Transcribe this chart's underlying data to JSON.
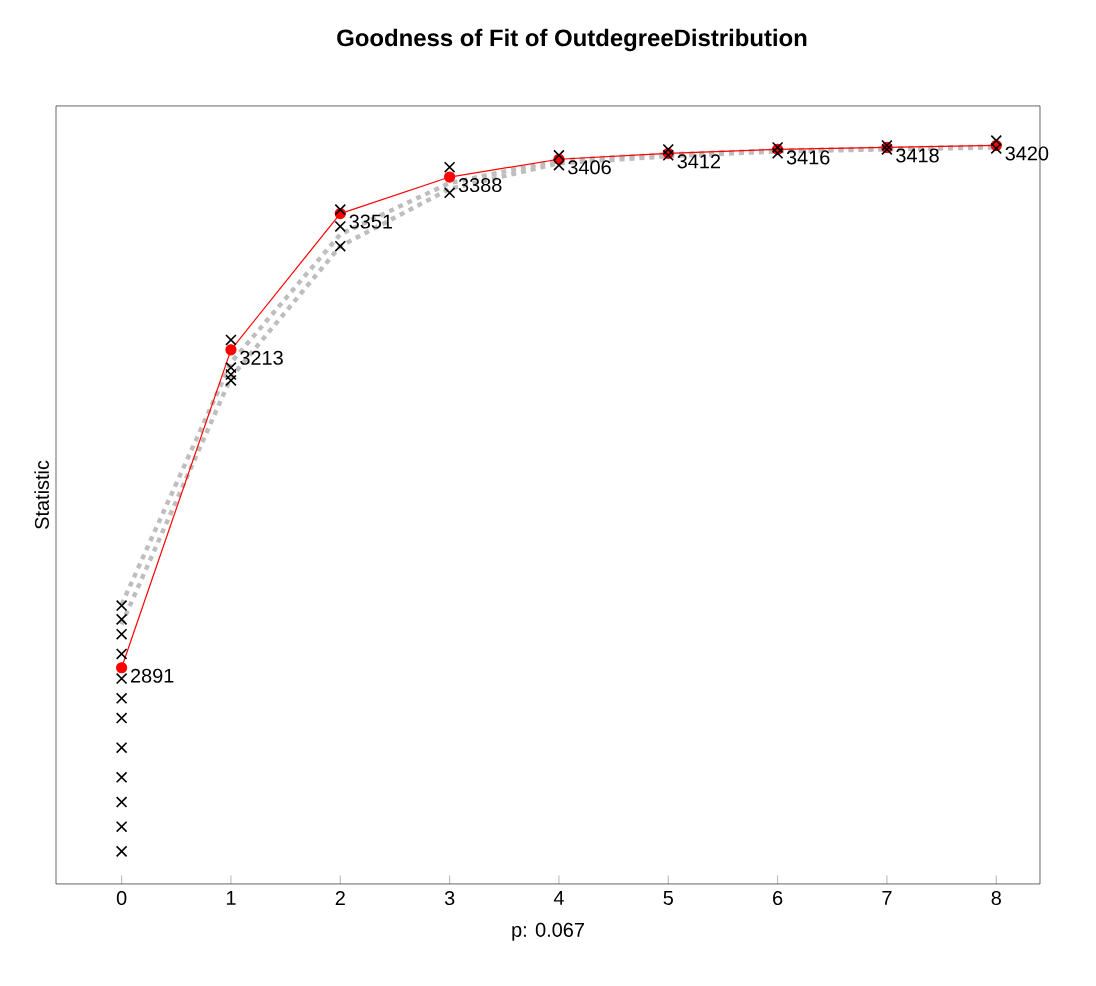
{
  "chart_data": {
    "type": "line",
    "title": "Goodness of Fit of OutdegreeDistribution",
    "xlabel": "p: 0.067",
    "ylabel": "Statistic",
    "x": [
      0,
      1,
      2,
      3,
      4,
      5,
      6,
      7,
      8
    ],
    "xlim": [
      -0.6,
      8.4
    ],
    "xticks": [
      0,
      1,
      2,
      3,
      4,
      5,
      6,
      7,
      8
    ],
    "ylim": [
      2672,
      3460
    ],
    "tick_labels": "x",
    "grid": false,
    "series": [
      {
        "color": "#bebebe",
        "line_style": "dotted",
        "marker": "none",
        "values": [
          2955,
          3200,
          3330,
          3382,
          3405,
          3411,
          3415,
          3417,
          3419
        ]
      },
      {
        "color": "#bebebe",
        "line_style": "dotted",
        "marker": "none",
        "values": [
          2935,
          3185,
          3318,
          3376,
          3402,
          3409,
          3414,
          3416,
          3418
        ]
      },
      {
        "color": "#ff0000",
        "line_style": "solid",
        "marker": "circle",
        "values": [
          2891,
          3213,
          3351,
          3388,
          3406,
          3412,
          3416,
          3418,
          3420
        ],
        "value_labels": [
          "2891",
          "3213",
          "3351",
          "3388",
          "3406",
          "3412",
          "3416",
          "3418",
          "3420"
        ]
      },
      {
        "type": "scatter",
        "color": "#000000",
        "marker": "cross",
        "x": [
          0,
          0,
          0,
          0,
          0,
          0,
          0,
          0,
          0,
          0,
          0,
          0,
          1,
          1,
          1,
          1,
          2,
          2,
          2,
          3,
          3,
          4,
          4,
          5,
          5,
          6,
          6,
          7,
          7,
          8,
          8
        ],
        "values": [
          2954,
          2940,
          2925,
          2905,
          2880,
          2860,
          2840,
          2810,
          2780,
          2755,
          2730,
          2705,
          3223,
          3195,
          3188,
          3182,
          3355,
          3338,
          3318,
          3398,
          3372,
          3410,
          3400,
          3416,
          3410,
          3418,
          3412,
          3420,
          3416,
          3425,
          3417
        ]
      }
    ]
  }
}
